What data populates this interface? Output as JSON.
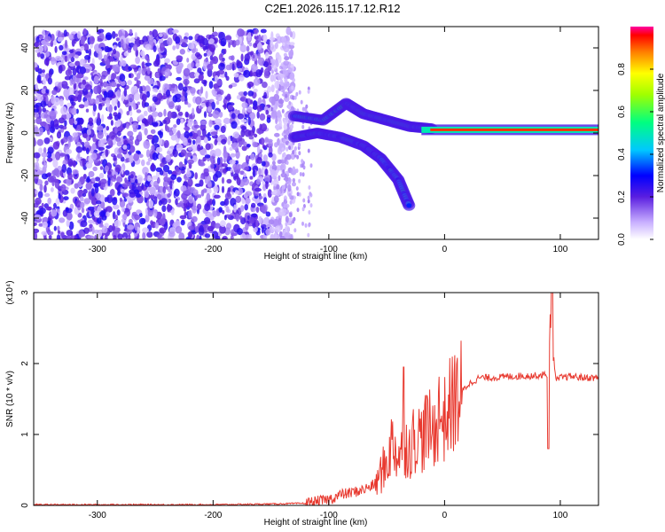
{
  "figure_title": "C2E1.2026.115.17.12.R12",
  "colors": {
    "snr_line": "#e83a30",
    "strip": "#ff3322",
    "frame": "#000000"
  },
  "chart_data": [
    {
      "type": "heatmap",
      "title": "C2E1.2026.115.17.12.R12",
      "xlabel": "Height of straight line (km)",
      "ylabel": "Frequency (Hz)",
      "xlim": [
        -355,
        133
      ],
      "ylim": [
        -50,
        50
      ],
      "x_ticks": [
        -300,
        -200,
        -100,
        0,
        100
      ],
      "y_ticks": [
        -40,
        -20,
        0,
        20,
        40
      ],
      "colorbar": {
        "label": "Normalized spectral amplitude",
        "range": [
          0,
          1
        ],
        "ticks": [
          "0.0",
          "0.2",
          "0.4",
          "0.6",
          "0.8"
        ]
      },
      "features": [
        {
          "name": "noise",
          "x_range": [
            -355,
            -130
          ],
          "y_range": [
            -50,
            48
          ],
          "amplitude": 0.15
        },
        {
          "name": "signal_branch_upper",
          "points": [
            [
              -130,
              8
            ],
            [
              -105,
              6
            ],
            [
              -85,
              14
            ],
            [
              -70,
              9
            ],
            [
              -50,
              6
            ],
            [
              -30,
              3
            ],
            [
              -10,
              2
            ]
          ],
          "amplitude": 0.35
        },
        {
          "name": "signal_branch_lower",
          "points": [
            [
              -130,
              -2
            ],
            [
              -110,
              0
            ],
            [
              -90,
              -2
            ],
            [
              -70,
              -6
            ],
            [
              -55,
              -12
            ],
            [
              -40,
              -22
            ],
            [
              -30,
              -35
            ]
          ],
          "amplitude": 0.3
        },
        {
          "name": "carrier",
          "x_range": [
            -20,
            133
          ],
          "y": 1.5,
          "amplitude": 0.95
        }
      ]
    },
    {
      "type": "line",
      "xlabel": "Height of straight line (km)",
      "ylabel": "SNR (10 * v/v)",
      "y_multiplier": "(x10⁴)",
      "xlim": [
        -355,
        133
      ],
      "ylim": [
        0,
        3
      ],
      "x_ticks": [
        -300,
        -200,
        -100,
        0,
        100
      ],
      "y_ticks": [
        0,
        1,
        2,
        3
      ],
      "series": [
        {
          "values_description_x": "height km",
          "x": [
            -355,
            -300,
            -250,
            -200,
            -150,
            -120,
            -100,
            -90,
            -80,
            -70,
            -60,
            -55,
            -50,
            -45,
            -40,
            -35,
            -30,
            -25,
            -20,
            -15,
            -10,
            -5,
            0,
            5,
            10,
            15,
            20,
            30,
            40,
            60,
            80,
            88,
            92,
            96,
            100,
            110,
            120,
            133
          ],
          "y": [
            0.01,
            0.01,
            0.01,
            0.01,
            0.02,
            0.03,
            0.08,
            0.15,
            0.18,
            0.22,
            0.3,
            0.45,
            0.6,
            0.9,
            0.7,
            0.9,
            0.8,
            1.0,
            0.95,
            1.1,
            1.0,
            1.3,
            1.2,
            1.4,
            1.5,
            1.6,
            1.7,
            1.8,
            1.8,
            1.82,
            1.83,
            1.85,
            2.6,
            1.75,
            1.8,
            1.82,
            1.8,
            1.8
          ]
        }
      ]
    }
  ]
}
